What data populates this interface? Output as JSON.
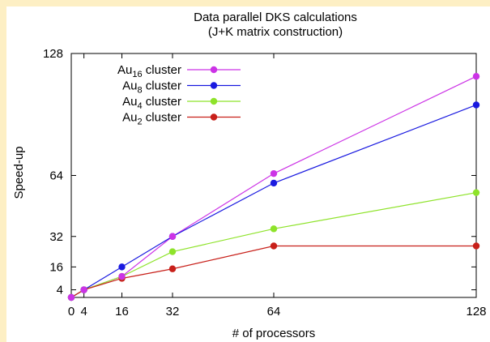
{
  "chart_data": {
    "type": "line",
    "title": "Data parallel DKS calculations",
    "subtitle": "(J+K matrix construction)",
    "xlabel": "# of processors",
    "ylabel": "Speed-up",
    "xlim": [
      0,
      128
    ],
    "ylim": [
      0,
      128
    ],
    "xticks": [
      0,
      4,
      16,
      32,
      64,
      128
    ],
    "yticks": [
      4,
      16,
      32,
      64,
      128
    ],
    "grid": false,
    "legend_position": "top-left",
    "series": [
      {
        "name": "Au16 cluster",
        "label_base": "Au",
        "label_sub": "16",
        "label_rest": " cluster",
        "color": "#cc33e6",
        "x": [
          0,
          4,
          16,
          32,
          64,
          128
        ],
        "y": [
          0,
          4,
          11,
          32,
          65,
          116
        ]
      },
      {
        "name": "Au8 cluster",
        "label_base": "Au",
        "label_sub": "8",
        "label_rest": " cluster",
        "color": "#1a1ae0",
        "x": [
          0,
          4,
          16,
          32,
          64,
          128
        ],
        "y": [
          0,
          4,
          16,
          32,
          60,
          101
        ]
      },
      {
        "name": "Au4 cluster",
        "label_base": "Au",
        "label_sub": "4",
        "label_rest": " cluster",
        "color": "#8ee32a",
        "x": [
          0,
          4,
          16,
          32,
          64,
          128
        ],
        "y": [
          0,
          4,
          11,
          24,
          36,
          55
        ]
      },
      {
        "name": "Au2 cluster",
        "label_base": "Au",
        "label_sub": "2",
        "label_rest": " cluster",
        "color": "#c8201a",
        "x": [
          0,
          4,
          16,
          32,
          64,
          128
        ],
        "y": [
          0,
          4,
          10,
          15,
          27,
          27
        ]
      }
    ]
  }
}
